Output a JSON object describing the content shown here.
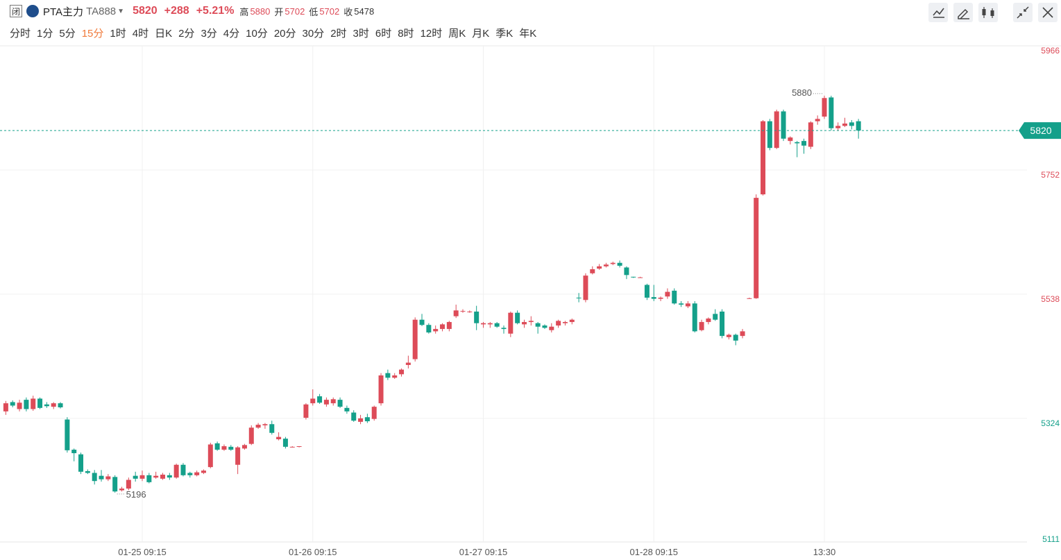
{
  "header": {
    "name": "PTA主力",
    "code": "TA888",
    "price": "5820",
    "change": "+288",
    "change_pct": "+5.21%",
    "high_label": "高",
    "high": "5880",
    "open_label": "开",
    "open": "5702",
    "low_label": "低",
    "low": "5702",
    "close_label": "收",
    "close": "5478"
  },
  "tabs": [
    {
      "label": "分时"
    },
    {
      "label": "1分"
    },
    {
      "label": "5分"
    },
    {
      "label": "15分",
      "active": true
    },
    {
      "label": "1时"
    },
    {
      "label": "4时"
    },
    {
      "label": "日K"
    },
    {
      "label": "2分"
    },
    {
      "label": "3分"
    },
    {
      "label": "4分"
    },
    {
      "label": "10分"
    },
    {
      "label": "20分"
    },
    {
      "label": "30分"
    },
    {
      "label": "2时"
    },
    {
      "label": "3时"
    },
    {
      "label": "6时"
    },
    {
      "label": "8时"
    },
    {
      "label": "12时"
    },
    {
      "label": "周K"
    },
    {
      "label": "月K"
    },
    {
      "label": "季K"
    },
    {
      "label": "年K"
    }
  ],
  "chart_data": {
    "type": "candlestick",
    "up_color": "#dd4b58",
    "down_color": "#14a08a",
    "ylim": [
      5111,
      5966
    ],
    "yticks": [
      5111,
      5324,
      5538,
      5752,
      5966
    ],
    "ytick_colors": [
      "#14a08a",
      "#14a08a",
      "#dd4b58",
      "#dd4b58",
      "#dd4b58"
    ],
    "last_price": 5820,
    "max_label": 5880,
    "min_label": 5196,
    "categories": [
      null,
      null,
      null,
      null,
      null,
      null,
      null,
      null,
      null,
      null,
      null,
      null,
      null,
      null,
      null,
      null,
      null,
      null,
      null,
      null,
      "01-25 09:15",
      null,
      null,
      null,
      null,
      null,
      null,
      null,
      null,
      null,
      null,
      null,
      null,
      null,
      null,
      null,
      null,
      null,
      null,
      null,
      null,
      null,
      null,
      null,
      null,
      "01-26 09:15",
      null,
      null,
      null,
      null,
      null,
      null,
      null,
      null,
      null,
      null,
      null,
      null,
      null,
      null,
      null,
      null,
      null,
      null,
      null,
      null,
      null,
      null,
      null,
      null,
      "01-27 09:15",
      null,
      null,
      null,
      null,
      null,
      null,
      null,
      null,
      null,
      null,
      null,
      null,
      null,
      null,
      null,
      null,
      null,
      null,
      null,
      null,
      null,
      null,
      null,
      null,
      "01-28 09:15",
      null,
      null,
      null,
      null,
      null,
      null,
      null,
      null,
      null,
      null,
      null,
      null,
      null,
      null,
      null,
      null,
      null,
      null,
      null,
      null,
      null,
      null,
      null,
      null,
      "13:30",
      null,
      null,
      null,
      null,
      null
    ],
    "open": [
      5336,
      5352,
      5340,
      5356,
      5340,
      5358,
      5348,
      5344,
      5350,
      5322,
      5270,
      5262,
      5233,
      5230,
      5225,
      5219,
      5223,
      5200,
      5203,
      5225,
      5220,
      5226,
      5222,
      5220,
      5226,
      5222,
      5244,
      5230,
      5226,
      5230,
      5240,
      5281,
      5270,
      5275,
      5244,
      5272,
      5280,
      5308,
      5312,
      5314,
      5288,
      5289,
      5275,
      5275,
      5325,
      5350,
      5362,
      5348,
      5350,
      5356,
      5342,
      5334,
      5318,
      5326,
      5323,
      5350,
      5402,
      5394,
      5400,
      5416,
      5426,
      5494,
      5485,
      5474,
      5478,
      5478,
      5500,
      5508,
      5508,
      5508,
      5486,
      5486,
      5488,
      5480,
      5470,
      5506,
      5486,
      5490,
      5488,
      5484,
      5476,
      5484,
      5488,
      5490,
      5532,
      5528,
      5574,
      5582,
      5586,
      5590,
      5592,
      5584,
      5568,
      5567,
      5554,
      5533,
      5530,
      5534,
      5544,
      5522,
      5517,
      5522,
      5476,
      5490,
      5504,
      5508,
      5464,
      5468,
      5466,
      5531,
      5531,
      5710,
      5836,
      5790,
      5853,
      5802,
      5800,
      5802,
      5792,
      5836,
      5844,
      5877,
      5824,
      5828,
      5834,
      5836
    ],
    "high": [
      5354,
      5355,
      5356,
      5360,
      5363,
      5360,
      5352,
      5352,
      5352,
      5326,
      5272,
      5265,
      5236,
      5235,
      5235,
      5228,
      5226,
      5206,
      5222,
      5232,
      5234,
      5230,
      5232,
      5230,
      5230,
      5246,
      5247,
      5232,
      5234,
      5236,
      5282,
      5284,
      5279,
      5278,
      5276,
      5280,
      5312,
      5316,
      5316,
      5320,
      5300,
      5292,
      5276,
      5276,
      5350,
      5374,
      5366,
      5360,
      5360,
      5360,
      5346,
      5338,
      5330,
      5332,
      5346,
      5402,
      5408,
      5402,
      5410,
      5432,
      5498,
      5504,
      5488,
      5484,
      5488,
      5492,
      5520,
      5512,
      5510,
      5518,
      5490,
      5490,
      5490,
      5484,
      5508,
      5510,
      5494,
      5500,
      5490,
      5486,
      5488,
      5494,
      5492,
      5496,
      5540,
      5574,
      5586,
      5590,
      5592,
      5594,
      5596,
      5586,
      5568,
      5568,
      5556,
      5554,
      5534,
      5548,
      5548,
      5526,
      5526,
      5526,
      5494,
      5498,
      5512,
      5512,
      5470,
      5470,
      5478,
      5532,
      5710,
      5838,
      5840,
      5856,
      5856,
      5810,
      5802,
      5806,
      5836,
      5846,
      5880,
      5880,
      5834,
      5842,
      5838,
      5840
    ],
    "low": [
      5330,
      5343,
      5336,
      5336,
      5337,
      5340,
      5342,
      5340,
      5341,
      5265,
      5250,
      5228,
      5228,
      5210,
      5215,
      5216,
      5196,
      5198,
      5200,
      5215,
      5216,
      5212,
      5220,
      5218,
      5218,
      5220,
      5224,
      5222,
      5224,
      5228,
      5238,
      5268,
      5268,
      5268,
      5228,
      5270,
      5278,
      5306,
      5306,
      5296,
      5286,
      5272,
      5274,
      5274,
      5322,
      5346,
      5349,
      5344,
      5346,
      5342,
      5332,
      5318,
      5314,
      5316,
      5320,
      5346,
      5390,
      5392,
      5396,
      5410,
      5422,
      5483,
      5470,
      5470,
      5474,
      5474,
      5497,
      5506,
      5506,
      5476,
      5480,
      5480,
      5480,
      5470,
      5464,
      5486,
      5480,
      5484,
      5470,
      5478,
      5472,
      5480,
      5484,
      5486,
      5524,
      5524,
      5572,
      5580,
      5584,
      5588,
      5584,
      5564,
      5566,
      5566,
      5528,
      5526,
      5526,
      5530,
      5520,
      5516,
      5514,
      5472,
      5474,
      5486,
      5492,
      5462,
      5460,
      5450,
      5462,
      5530,
      5530,
      5708,
      5786,
      5788,
      5802,
      5796,
      5774,
      5780,
      5788,
      5830,
      5840,
      5820,
      5820,
      5826,
      5822,
      5806
    ],
    "close": [
      5350,
      5346,
      5351,
      5340,
      5358,
      5342,
      5345,
      5350,
      5343,
      5269,
      5264,
      5232,
      5230,
      5216,
      5219,
      5224,
      5198,
      5203,
      5218,
      5220,
      5226,
      5214,
      5225,
      5227,
      5222,
      5244,
      5226,
      5226,
      5231,
      5234,
      5279,
      5270,
      5276,
      5270,
      5274,
      5278,
      5308,
      5313,
      5314,
      5299,
      5292,
      5275,
      5275,
      5276,
      5348,
      5358,
      5351,
      5356,
      5357,
      5344,
      5336,
      5320,
      5324,
      5319,
      5344,
      5398,
      5394,
      5398,
      5408,
      5420,
      5494,
      5485,
      5472,
      5478,
      5486,
      5490,
      5510,
      5509,
      5508,
      5488,
      5488,
      5488,
      5482,
      5478,
      5506,
      5488,
      5490,
      5492,
      5482,
      5480,
      5482,
      5492,
      5490,
      5494,
      5531,
      5570,
      5581,
      5586,
      5589,
      5592,
      5587,
      5571,
      5567,
      5567,
      5532,
      5530,
      5532,
      5542,
      5522,
      5520,
      5522,
      5474,
      5490,
      5496,
      5494,
      5466,
      5468,
      5458,
      5474,
      5531,
      5704,
      5836,
      5790,
      5853,
      5806,
      5808,
      5798,
      5794,
      5834,
      5840,
      5876,
      5824,
      5828,
      5832,
      5828,
      5820
    ]
  }
}
